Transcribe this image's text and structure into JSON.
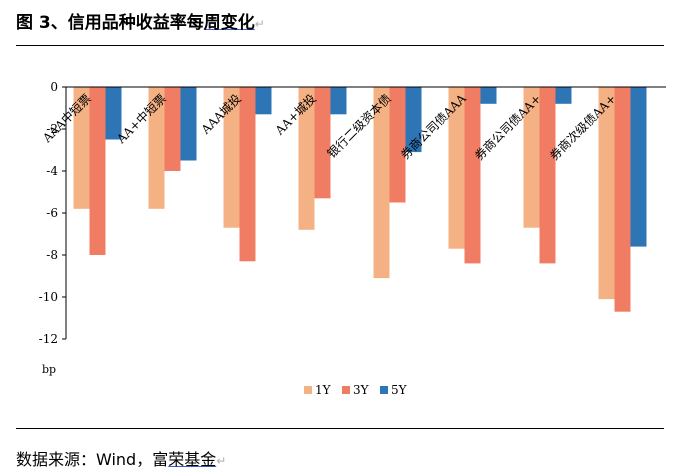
{
  "title": {
    "main": "图 3、信用品种收益率每",
    "underlined": "周变化",
    "mark": "↵"
  },
  "source": {
    "main": "数据来源：Wind，富",
    "underlined": "荣基金",
    "mark": "↵"
  },
  "chart_data": {
    "type": "bar",
    "unit": "bp",
    "categories": [
      "AAA中短票",
      "AA+中短票",
      "AAA城投",
      "AA+城投",
      "银行二级资本债",
      "券商公司债AAA",
      "券商公司债AA+",
      "券商次级债AA+"
    ],
    "series": [
      {
        "name": "1Y",
        "color": "#F4B183",
        "values": [
          -5.8,
          -5.8,
          -6.7,
          -6.8,
          -9.1,
          -7.7,
          -6.7,
          -10.1
        ]
      },
      {
        "name": "3Y",
        "color": "#F07C64",
        "values": [
          -8.0,
          -4.0,
          -8.3,
          -5.3,
          -5.5,
          -8.4,
          -8.4,
          -10.7
        ]
      },
      {
        "name": "5Y",
        "color": "#2E75B6",
        "values": [
          -2.5,
          -3.5,
          -1.3,
          -1.3,
          -3.1,
          -0.8,
          -0.8,
          -7.6
        ]
      }
    ],
    "ylim": [
      -12,
      0
    ],
    "yticks": [
      0,
      -2,
      -4,
      -6,
      -8,
      -10,
      -12
    ],
    "legend_position": "bottom"
  }
}
